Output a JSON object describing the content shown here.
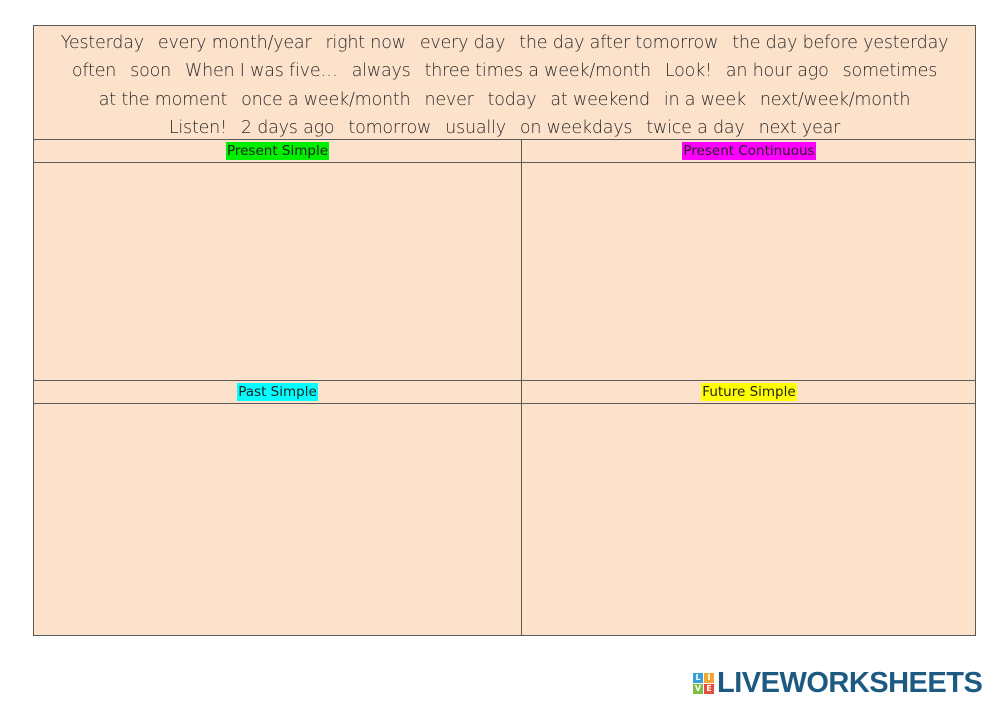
{
  "word_bank": {
    "lines": [
      [
        "Yesterday",
        "every month/year",
        "right now",
        "every day",
        "the day after tomorrow",
        "the day before yesterday"
      ],
      [
        "often",
        "soon",
        "When I was five…",
        "always",
        "three times a week/month",
        "Look!",
        "an hour ago",
        "sometimes"
      ],
      [
        "at the moment",
        "once a week/month",
        "never",
        "today",
        "at weekend",
        "in a week",
        "next/week/month"
      ],
      [
        "Listen!",
        "2 days ago",
        "tomorrow",
        "usually",
        "on weekdays",
        "twice a day",
        "next year"
      ]
    ]
  },
  "categories": {
    "present_simple": {
      "label": "Present Simple",
      "color": "#00ee00"
    },
    "present_continuous": {
      "label": "Present Continuous",
      "color": "#ff00ff"
    },
    "past_simple": {
      "label": "Past Simple",
      "color": "#00ffff"
    },
    "future_simple": {
      "label": "Future Simple",
      "color": "#ffff00"
    }
  },
  "branding": {
    "logo_text": "LIVEWORKSHEETS",
    "logo_mark": [
      "L",
      "I",
      "V",
      "E"
    ],
    "logo_mark_colors": [
      "#3aa0d8",
      "#f2a531",
      "#7bc043",
      "#e84c3d"
    ],
    "logo_color": "#1d5a82"
  }
}
